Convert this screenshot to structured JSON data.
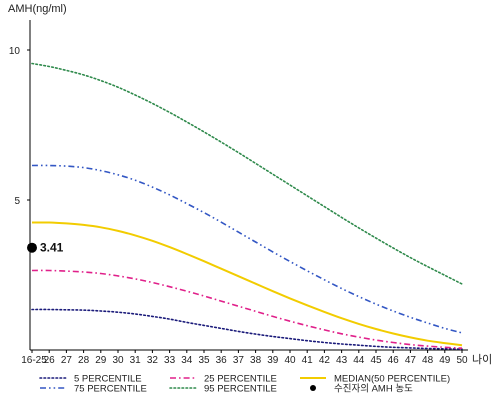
{
  "chart_data": {
    "type": "line",
    "ylabel": "AMH(ng/ml)",
    "xlabel": "나이",
    "ylim": [
      0,
      11
    ],
    "yticks": [
      "5",
      "10"
    ],
    "ytick_values": [
      5,
      10
    ],
    "categories": [
      "16-25",
      "26",
      "27",
      "28",
      "29",
      "30",
      "31",
      "32",
      "33",
      "34",
      "35",
      "36",
      "37",
      "38",
      "39",
      "40",
      "41",
      "42",
      "43",
      "44",
      "45",
      "46",
      "47",
      "48",
      "49",
      "50"
    ],
    "grid": false,
    "legend_position": "bottom",
    "series": [
      {
        "name": "5 PERCENTILE",
        "color": "#1a1a7a",
        "dash": "dotted",
        "values": [
          1.35,
          1.35,
          1.34,
          1.33,
          1.3,
          1.26,
          1.2,
          1.12,
          1.03,
          0.92,
          0.82,
          0.72,
          0.62,
          0.53,
          0.45,
          0.38,
          0.31,
          0.25,
          0.2,
          0.16,
          0.12,
          0.09,
          0.07,
          0.05,
          0.04,
          0.03
        ]
      },
      {
        "name": "25 PERCENTILE",
        "color": "#e0208a",
        "dash": "dashdot",
        "values": [
          2.65,
          2.65,
          2.63,
          2.6,
          2.55,
          2.47,
          2.37,
          2.25,
          2.11,
          1.96,
          1.8,
          1.63,
          1.46,
          1.29,
          1.12,
          0.96,
          0.81,
          0.67,
          0.54,
          0.43,
          0.33,
          0.25,
          0.18,
          0.13,
          0.09,
          0.06
        ]
      },
      {
        "name": "MEDIAN(50 PERCENTILE)",
        "color": "#f2cc00",
        "dash": "solid",
        "values": [
          4.25,
          4.25,
          4.22,
          4.17,
          4.09,
          3.97,
          3.82,
          3.64,
          3.43,
          3.2,
          2.96,
          2.71,
          2.46,
          2.21,
          1.96,
          1.72,
          1.49,
          1.27,
          1.06,
          0.87,
          0.7,
          0.55,
          0.42,
          0.31,
          0.23,
          0.16
        ]
      },
      {
        "name": "75 PERCENTILE",
        "color": "#3357c4",
        "dash": "dashdotdot",
        "values": [
          6.15,
          6.15,
          6.13,
          6.08,
          5.98,
          5.84,
          5.66,
          5.43,
          5.17,
          4.88,
          4.58,
          4.26,
          3.93,
          3.6,
          3.27,
          2.95,
          2.64,
          2.34,
          2.05,
          1.78,
          1.53,
          1.3,
          1.09,
          0.9,
          0.72,
          0.57
        ]
      },
      {
        "name": "95 PERCENTILE",
        "color": "#2f8a4c",
        "dash": "dotted",
        "values": [
          9.55,
          9.45,
          9.32,
          9.17,
          8.98,
          8.76,
          8.5,
          8.22,
          7.92,
          7.6,
          7.27,
          6.93,
          6.58,
          6.22,
          5.86,
          5.5,
          5.14,
          4.78,
          4.42,
          4.07,
          3.73,
          3.4,
          3.08,
          2.78,
          2.49,
          2.2
        ]
      }
    ],
    "patient": {
      "name": "수진자의 AMH 농도",
      "x_index": 0,
      "value": 3.41,
      "label": "3.41",
      "color": "#000000"
    }
  }
}
